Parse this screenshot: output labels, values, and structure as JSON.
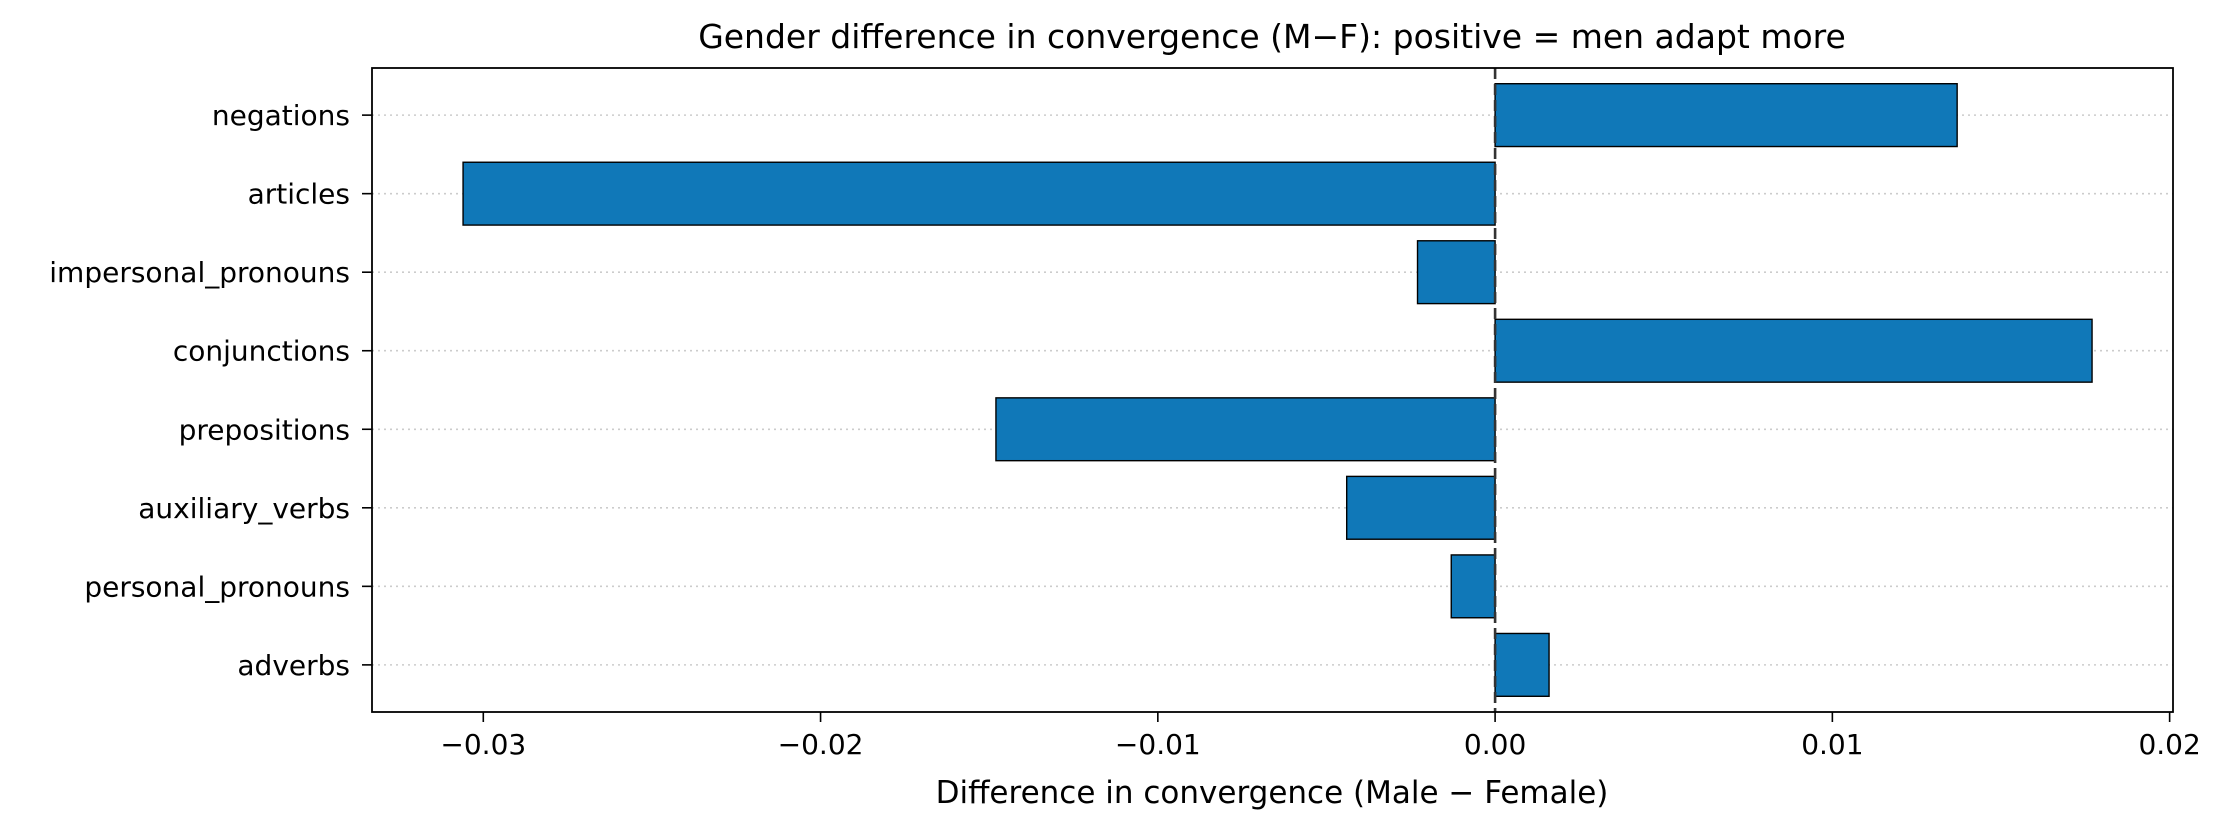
{
  "chart_data": {
    "type": "bar",
    "orientation": "horizontal",
    "title": "Gender difference in convergence (M−F): positive = men adapt more",
    "xlabel": "Difference in convergence (Male − Female)",
    "ylabel": "",
    "categories": [
      "negations",
      "articles",
      "impersonal_pronouns",
      "conjunctions",
      "prepositions",
      "auxiliary_verbs",
      "personal_pronouns",
      "adverbs"
    ],
    "values": [
      0.0137,
      -0.0306,
      -0.0023,
      0.0177,
      -0.0148,
      -0.0044,
      -0.0013,
      0.0016
    ],
    "xlim": [
      -0.0333,
      0.0201
    ],
    "xticks": [
      -0.03,
      -0.02,
      -0.01,
      0.0,
      0.01,
      0.02
    ],
    "xtick_labels": [
      "−0.03",
      "−0.02",
      "−0.01",
      "0.00",
      "0.01",
      "0.02"
    ],
    "grid": "horizontal dotted",
    "reference_line": {
      "x": 0.0,
      "style": "dashed"
    },
    "colors": {
      "bar": "#1078b8",
      "bar_edge": "#000000",
      "grid": "#cccccc",
      "zero_line": "#333333"
    }
  }
}
